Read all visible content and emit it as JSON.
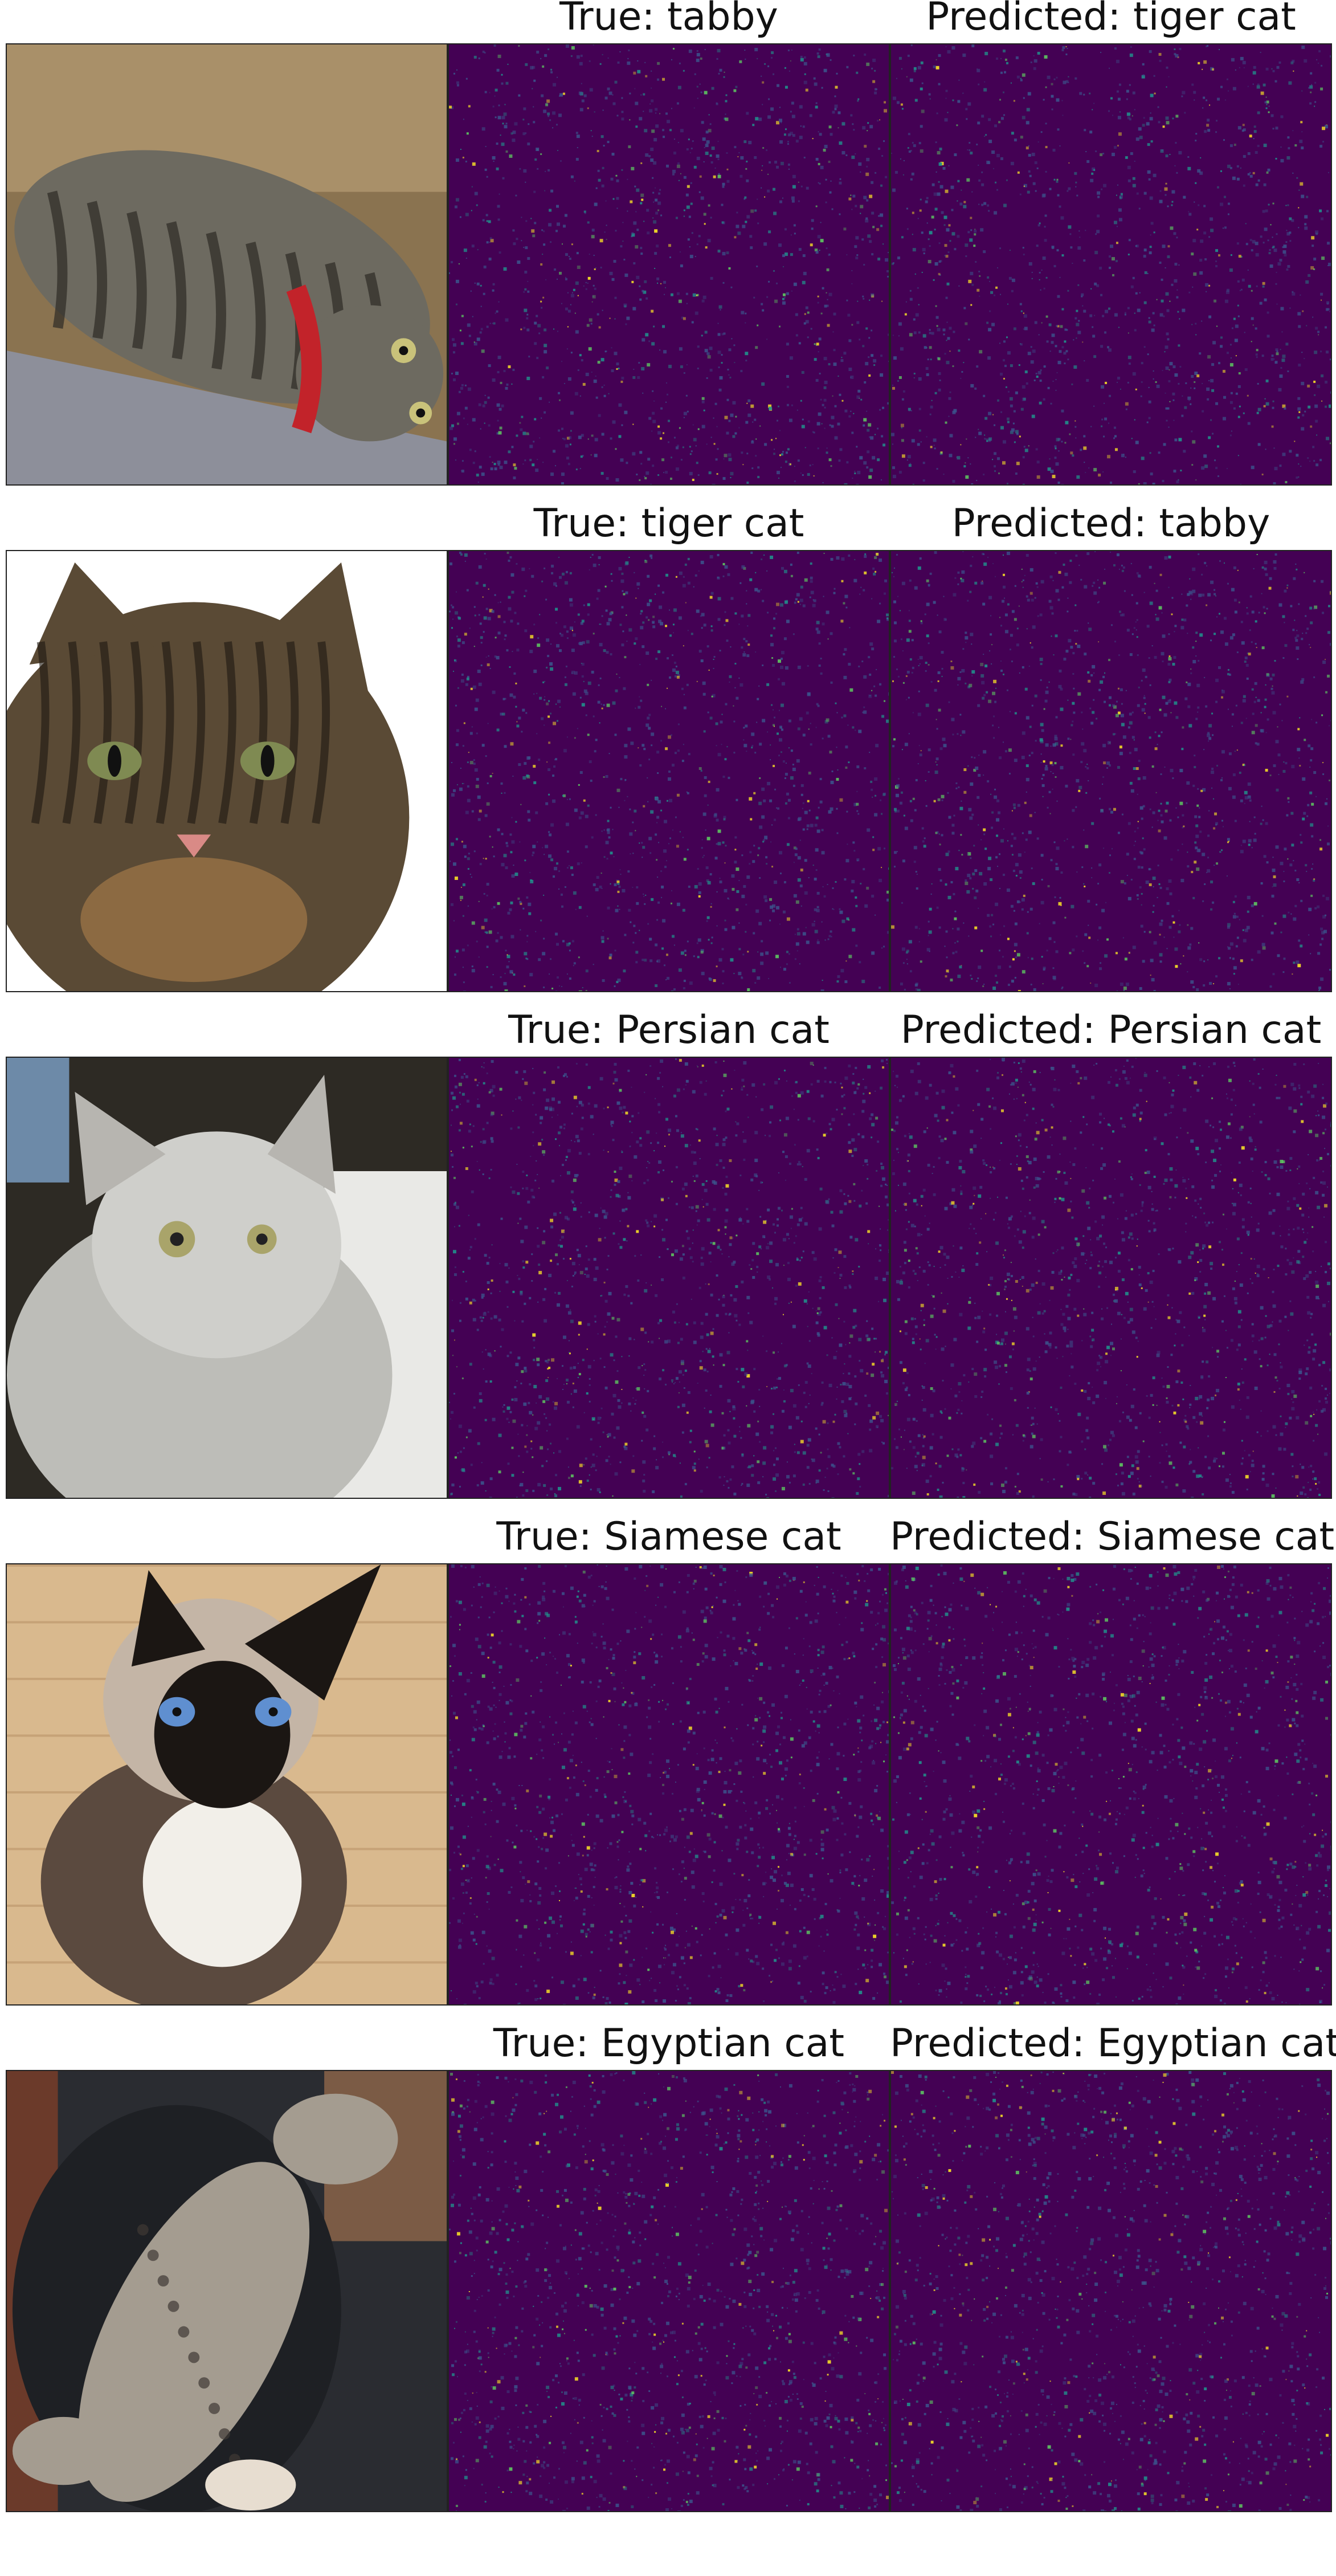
{
  "panels": [
    {
      "true_label": "True: tabby",
      "predicted_label": "Predicted: tiger cat",
      "photo_subject": "tabby-cat-lying-on-side-red-collar",
      "photo_colors": {
        "bg1": "#8a7350",
        "bg2": "#b69d73",
        "floor": "#8d8f9a",
        "fur": "#6d6a60",
        "stripe": "#2e2b25",
        "accent": "#c2232a"
      }
    },
    {
      "true_label": "True: tiger cat",
      "predicted_label": "Predicted: tabby",
      "photo_subject": "tiger-cat-face-closeup",
      "photo_colors": {
        "bg1": "#f4f4f2",
        "bg2": "#ffffff",
        "floor": "#3a2f22",
        "fur": "#5a4a35",
        "stripe": "#1d1711",
        "accent": "#d98a86"
      }
    },
    {
      "true_label": "True: Persian cat",
      "predicted_label": "Predicted: Persian cat",
      "photo_subject": "grey-persian-cat",
      "photo_colors": {
        "bg1": "#2d2a24",
        "bg2": "#c7c9c4",
        "floor": "#e9e9e6",
        "fur": "#bdbdb8",
        "stripe": "#8e8f8a",
        "accent": "#a9a46a"
      }
    },
    {
      "true_label": "True: Siamese cat",
      "predicted_label": "Predicted: Siamese cat",
      "photo_subject": "siamese-cat-sitting",
      "photo_colors": {
        "bg1": "#d9b98e",
        "bg2": "#c6a277",
        "floor": "#d4b287",
        "fur": "#c4b5a6",
        "stripe": "#1b1613",
        "accent": "#5f8fd0"
      }
    },
    {
      "true_label": "True: Egyptian cat",
      "predicted_label": "Predicted: Egyptian cat",
      "photo_subject": "egyptian-cat-on-lap",
      "photo_colors": {
        "bg1": "#1e2024",
        "bg2": "#6b3a2a",
        "floor": "#2a2c31",
        "fur": "#a49c90",
        "stripe": "#3e3934",
        "accent": "#e7ddd0"
      }
    }
  ],
  "heatmap_colors": {
    "base": "#440154",
    "mid": "#3b528b",
    "teal": "#21918c",
    "green": "#5ec962",
    "yellow": "#fde725"
  }
}
